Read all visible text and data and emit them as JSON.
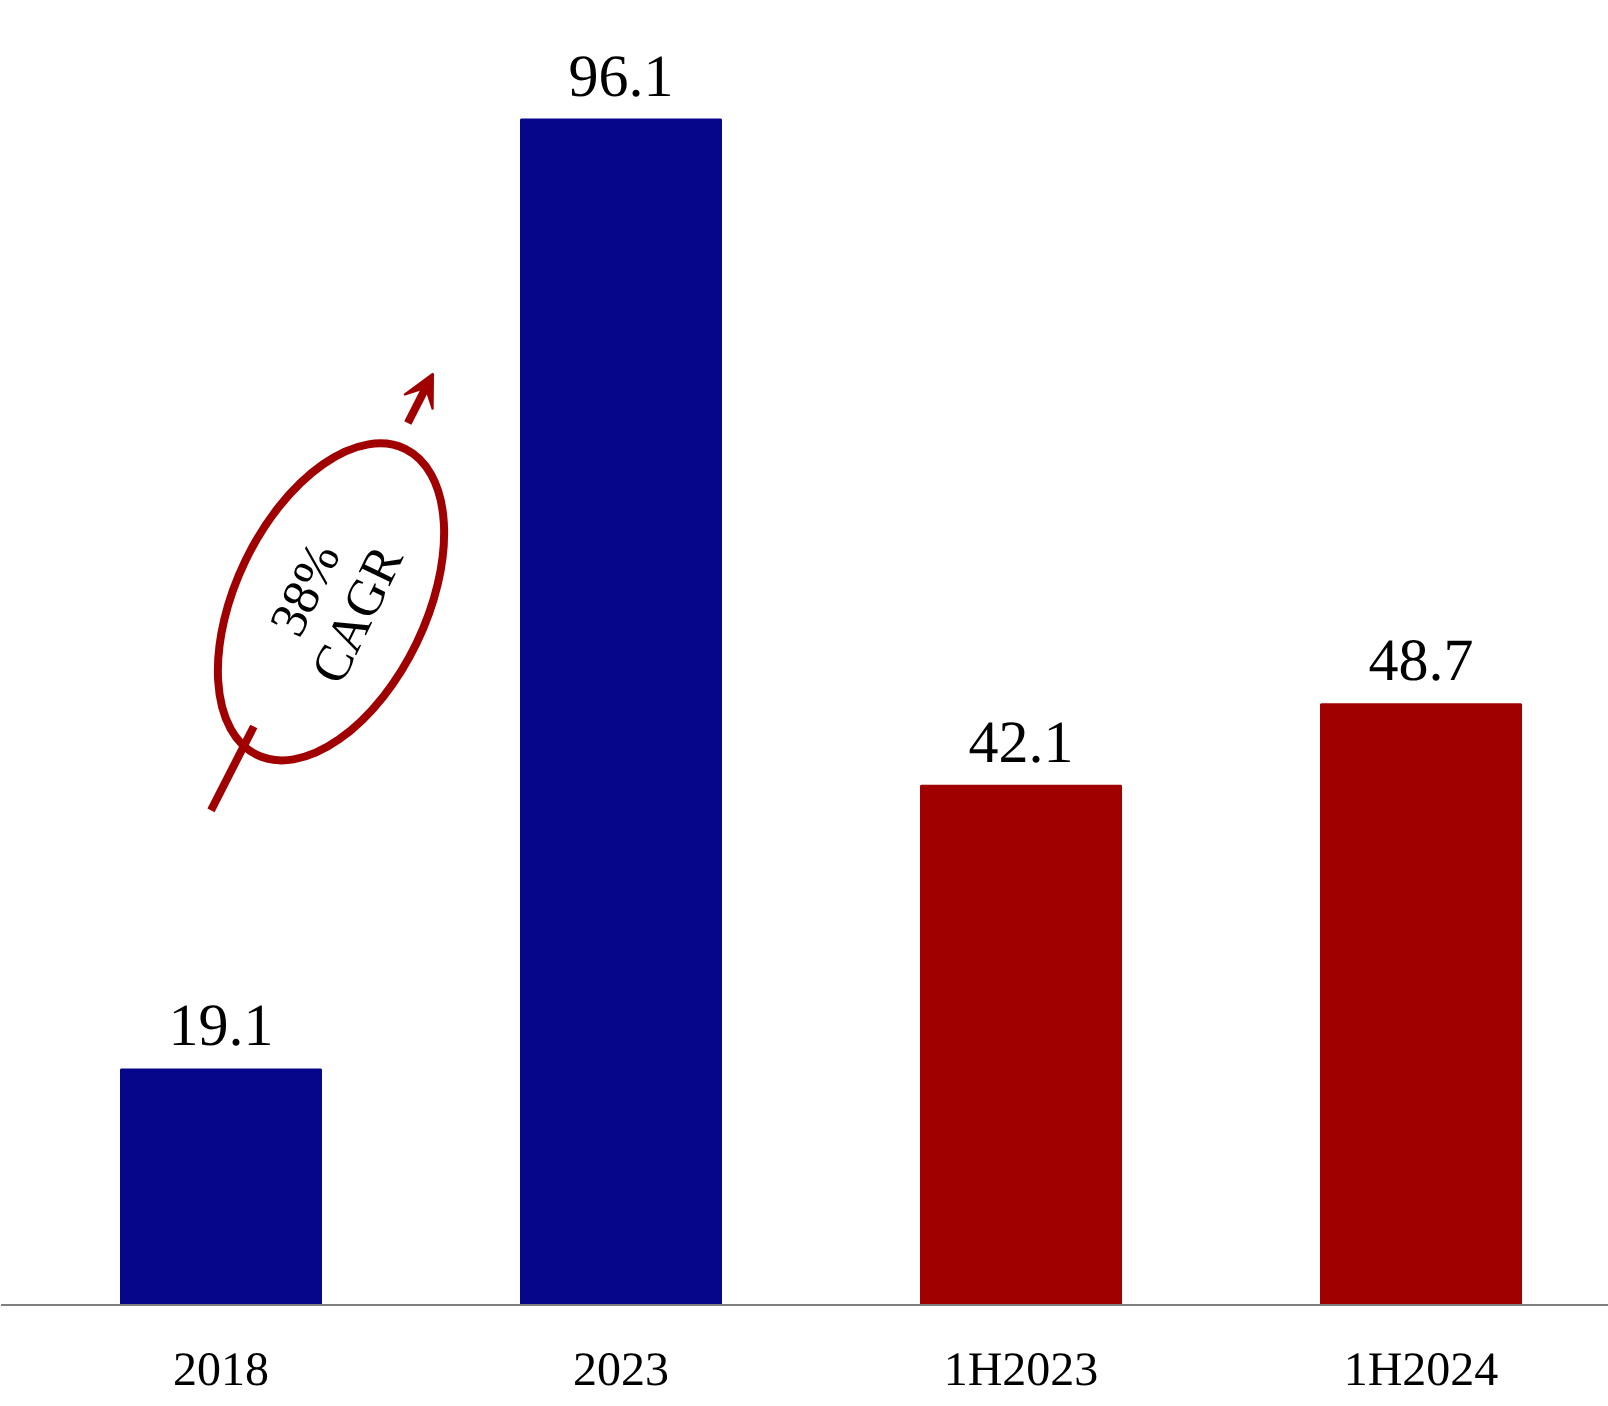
{
  "chart_data": {
    "type": "bar",
    "categories": [
      "2018",
      "2023",
      "1H2023",
      "1H2024"
    ],
    "values": [
      19.1,
      96.1,
      42.1,
      48.7
    ],
    "colors": [
      "#06068a",
      "#06068a",
      "#a00000",
      "#a00000"
    ],
    "data_labels": true,
    "grid": false,
    "annotations": [
      "38% CAGR"
    ]
  }
}
